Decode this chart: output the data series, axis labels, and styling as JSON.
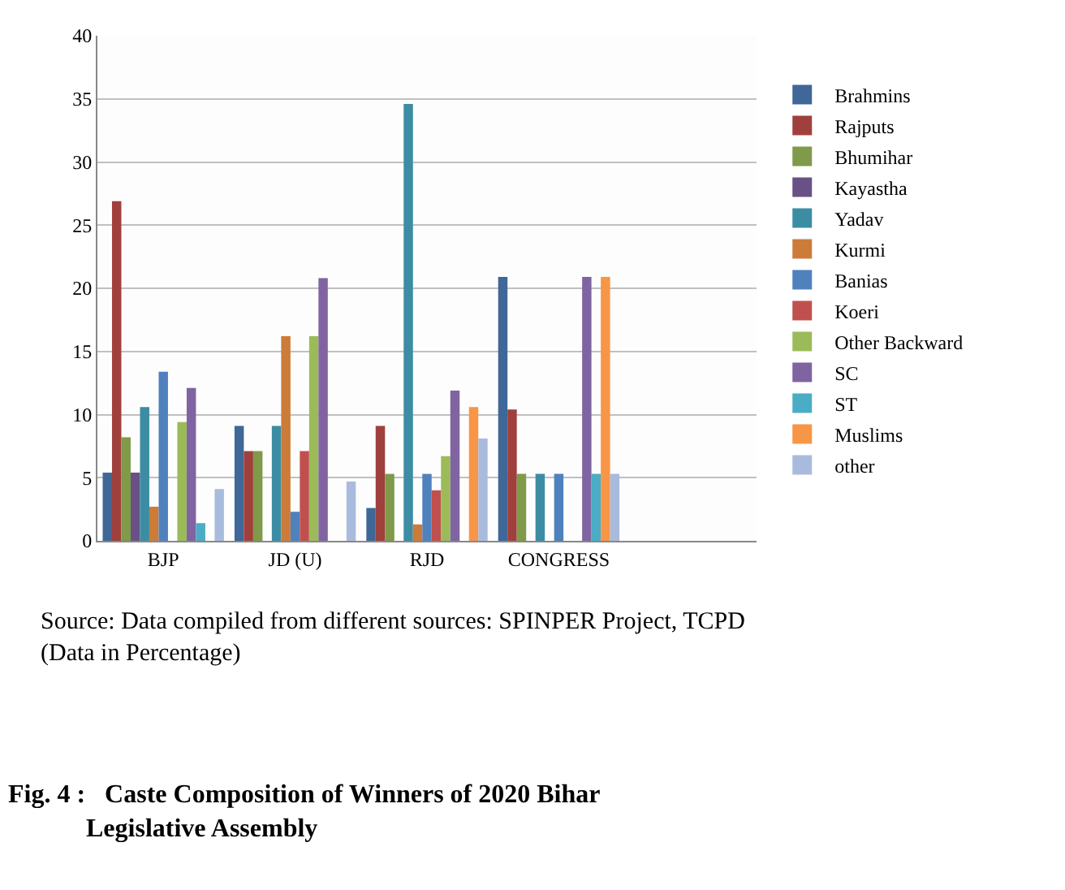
{
  "chart_data": {
    "type": "bar",
    "title": "Fig. 4 :   Caste Composition of Winners of 2020 Bihar Legislative Assembly",
    "categories": [
      "BJP",
      "JD (U)",
      "RJD",
      "CONGRESS",
      null
    ],
    "series": [
      {
        "name": "Brahmins",
        "color": "#3f6797",
        "values": [
          5.4,
          9.1,
          2.6,
          20.9,
          null
        ]
      },
      {
        "name": "Rajputs",
        "color": "#a0403d",
        "values": [
          26.9,
          7.1,
          9.1,
          10.4,
          null
        ]
      },
      {
        "name": "Bhumihar",
        "color": "#7f9a48",
        "values": [
          8.2,
          7.1,
          5.3,
          5.3,
          null
        ]
      },
      {
        "name": "Kayastha",
        "color": "#695185",
        "values": [
          5.4,
          null,
          null,
          null,
          null
        ]
      },
      {
        "name": "Yadav",
        "color": "#3c8da3",
        "values": [
          10.6,
          9.1,
          34.6,
          5.3,
          null
        ]
      },
      {
        "name": "Kurmi",
        "color": "#cc7b38",
        "values": [
          2.7,
          16.2,
          1.3,
          null,
          null
        ]
      },
      {
        "name": "Banias",
        "color": "#4f81bd",
        "values": [
          13.4,
          2.3,
          5.3,
          5.3,
          null
        ]
      },
      {
        "name": "Koeri",
        "color": "#c0504d",
        "values": [
          null,
          7.1,
          4.0,
          null,
          null
        ]
      },
      {
        "name": "Other Backward",
        "color": "#9bbb59",
        "values": [
          9.4,
          16.2,
          6.7,
          null,
          null
        ]
      },
      {
        "name": "SC",
        "color": "#8064a2",
        "values": [
          12.1,
          20.8,
          11.9,
          20.9,
          null
        ]
      },
      {
        "name": "ST",
        "color": "#4bacc6",
        "values": [
          1.4,
          null,
          null,
          5.3,
          null
        ]
      },
      {
        "name": "Muslims",
        "color": "#f79646",
        "values": [
          null,
          null,
          10.6,
          20.9,
          null
        ]
      },
      {
        "name": "other",
        "color": "#a9bbdd",
        "values": [
          4.1,
          4.7,
          8.1,
          5.3,
          null
        ]
      }
    ],
    "ylim": [
      0,
      40
    ],
    "yticks": [
      0,
      5,
      10,
      15,
      20,
      25,
      30,
      35,
      40
    ],
    "grid": "y",
    "legend": "right",
    "annotations": [
      "Source: Data compiled from different sources: SPINPER Project, TCPD (Data in Percentage)"
    ]
  }
}
